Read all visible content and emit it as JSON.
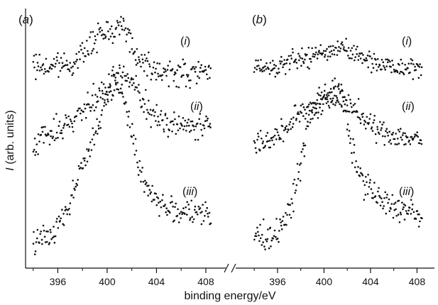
{
  "chart_data": {
    "type": "scatter",
    "xlabel": "binding energy/eV",
    "ylabel": "I (arb. units)",
    "ylabel_italic_part": "I",
    "ylabel_rest": " (arb. units)",
    "y_ticks_shown": false,
    "grid": false,
    "axis_break": true,
    "ylim": [
      0,
      10
    ],
    "panels": [
      {
        "label_open": "(",
        "label_letter": "a",
        "label_close": ")",
        "xlim": [
          393.5,
          409.5
        ],
        "xticks": [
          396,
          400,
          404,
          408
        ],
        "tick_labels": [
          "396",
          "400",
          "404",
          "408"
        ],
        "series": [
          {
            "label_open": "(",
            "label_roman": "i",
            "label_close": ")",
            "x_range": [
              394.0,
              408.4
            ],
            "noise": 0.25,
            "points": [
              [
                394.0,
                7.8
              ],
              [
                396.0,
                7.8
              ],
              [
                397.5,
                8.0
              ],
              [
                398.5,
                8.6
              ],
              [
                399.5,
                9.0
              ],
              [
                400.5,
                9.4
              ],
              [
                401.5,
                9.4
              ],
              [
                402.2,
                8.3
              ],
              [
                403.0,
                7.9
              ],
              [
                405.0,
                7.5
              ],
              [
                408.4,
                7.5
              ]
            ]
          },
          {
            "label_open": "(",
            "label_roman": "ii",
            "label_close": ")",
            "x_range": [
              394.0,
              408.4
            ],
            "noise": 0.25,
            "points": [
              [
                394.0,
                4.8
              ],
              [
                396.0,
                5.3
              ],
              [
                398.0,
                6.0
              ],
              [
                399.5,
                6.7
              ],
              [
                400.5,
                7.2
              ],
              [
                401.0,
                7.5
              ],
              [
                402.0,
                7.2
              ],
              [
                403.0,
                6.3
              ],
              [
                404.0,
                5.8
              ],
              [
                406.0,
                5.5
              ],
              [
                408.4,
                5.4
              ]
            ]
          },
          {
            "label_open": "(",
            "label_roman": "iii",
            "label_close": ")",
            "x_range": [
              394.0,
              408.4
            ],
            "noise": 0.25,
            "points": [
              [
                394.0,
                1.0
              ],
              [
                395.5,
                1.2
              ],
              [
                397.0,
                2.5
              ],
              [
                398.0,
                4.0
              ],
              [
                399.0,
                5.0
              ],
              [
                400.0,
                6.5
              ],
              [
                400.8,
                7.3
              ],
              [
                401.5,
                6.3
              ],
              [
                402.5,
                4.0
              ],
              [
                403.5,
                2.8
              ],
              [
                405.0,
                2.2
              ],
              [
                408.4,
                1.9
              ]
            ]
          }
        ]
      },
      {
        "label_open": "(",
        "label_letter": "b",
        "label_close": ")",
        "xlim": [
          393.5,
          409.5
        ],
        "xticks": [
          396,
          400,
          404,
          408
        ],
        "tick_labels": [
          "396",
          "400",
          "404",
          "408"
        ],
        "series": [
          {
            "label_open": "(",
            "label_roman": "i",
            "label_close": ")",
            "x_range": [
              394.0,
              408.4
            ],
            "noise": 0.2,
            "points": [
              [
                394.0,
                7.8
              ],
              [
                396.0,
                7.8
              ],
              [
                398.0,
                8.1
              ],
              [
                400.0,
                8.3
              ],
              [
                401.5,
                8.6
              ],
              [
                403.0,
                8.2
              ],
              [
                405.0,
                7.9
              ],
              [
                408.4,
                7.7
              ]
            ]
          },
          {
            "label_open": "(",
            "label_roman": "ii",
            "label_close": ")",
            "x_range": [
              394.0,
              408.4
            ],
            "noise": 0.22,
            "points": [
              [
                394.0,
                4.8
              ],
              [
                396.0,
                5.0
              ],
              [
                398.0,
                6.0
              ],
              [
                400.0,
                6.7
              ],
              [
                401.0,
                6.9
              ],
              [
                402.5,
                6.2
              ],
              [
                404.0,
                5.4
              ],
              [
                406.0,
                5.1
              ],
              [
                408.4,
                4.9
              ]
            ]
          },
          {
            "label_open": "(",
            "label_roman": "iii",
            "label_close": ")",
            "x_range": [
              394.0,
              408.4
            ],
            "noise": 0.25,
            "points": [
              [
                394.0,
                1.2
              ],
              [
                395.5,
                1.1
              ],
              [
                397.0,
                2.0
              ],
              [
                398.0,
                4.0
              ],
              [
                398.8,
                5.8
              ],
              [
                400.0,
                6.4
              ],
              [
                401.0,
                6.6
              ],
              [
                401.6,
                6.4
              ],
              [
                402.4,
                4.5
              ],
              [
                403.5,
                3.2
              ],
              [
                405.0,
                2.5
              ],
              [
                408.4,
                1.9
              ]
            ]
          }
        ]
      }
    ]
  }
}
